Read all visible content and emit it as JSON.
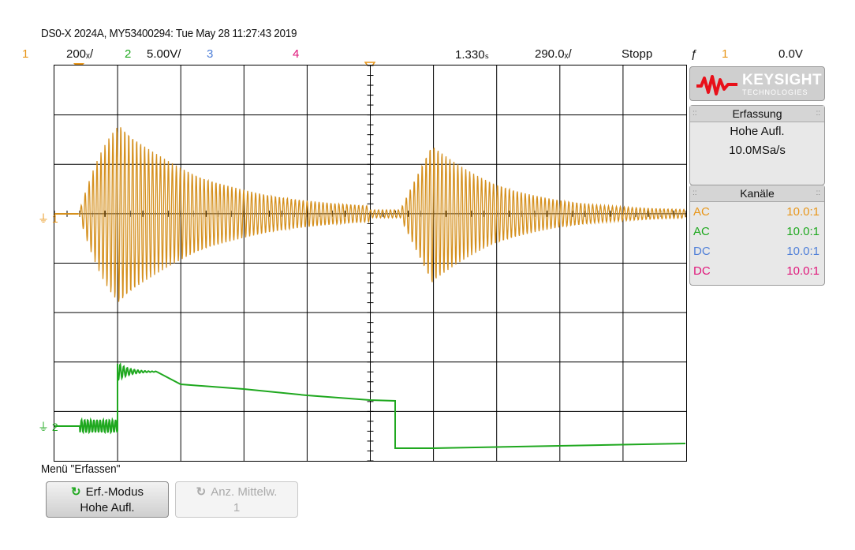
{
  "header": {
    "title": "DS0-X 2024A, MY53400294: Tue May 28 11:27:43 2019"
  },
  "status": {
    "ch1_num": "1",
    "ch1_scale": "200ₓ/",
    "ch2_num": "2",
    "ch2_scale": "5.00V/",
    "ch3_num": "3",
    "ch4_num": "4",
    "time_delay": "1.330ₛ",
    "time_scale": "290.0ₓ/",
    "run_state": "Stopp",
    "trigger_icon": "ƒ",
    "trigger_channel": "1",
    "trigger_level": "0.0V"
  },
  "colors": {
    "ch1": "#d5901e",
    "ch2": "#1fa81f",
    "ch3": "#4f7fd8",
    "ch4": "#e0157a"
  },
  "waveform": {
    "ch1_marker_label": "1",
    "ch2_marker_label": "2",
    "ch1_ground_symbol": "⏚",
    "ch2_ground_symbol": "⏚"
  },
  "logo": {
    "brand": "KEYSIGHT",
    "sub": "TECHNOLOGIES"
  },
  "acquisition_panel": {
    "title": "Erfassung",
    "mode": "Hohe Aufl.",
    "sample_rate": "10.0MSa/s"
  },
  "channels_panel": {
    "title": "Kanäle",
    "rows": [
      {
        "coupling": "AC",
        "probe": "10.0:1"
      },
      {
        "coupling": "AC",
        "probe": "10.0:1"
      },
      {
        "coupling": "DC",
        "probe": "10.0:1"
      },
      {
        "coupling": "DC",
        "probe": "10.0:1"
      }
    ]
  },
  "menu": {
    "title": "Menü \"Erfassen\""
  },
  "softkeys": [
    {
      "label": "Erf.-Modus",
      "value": "Hohe Aufl."
    },
    {
      "label": "Anz. Mittelw.",
      "value": "1"
    }
  ]
}
